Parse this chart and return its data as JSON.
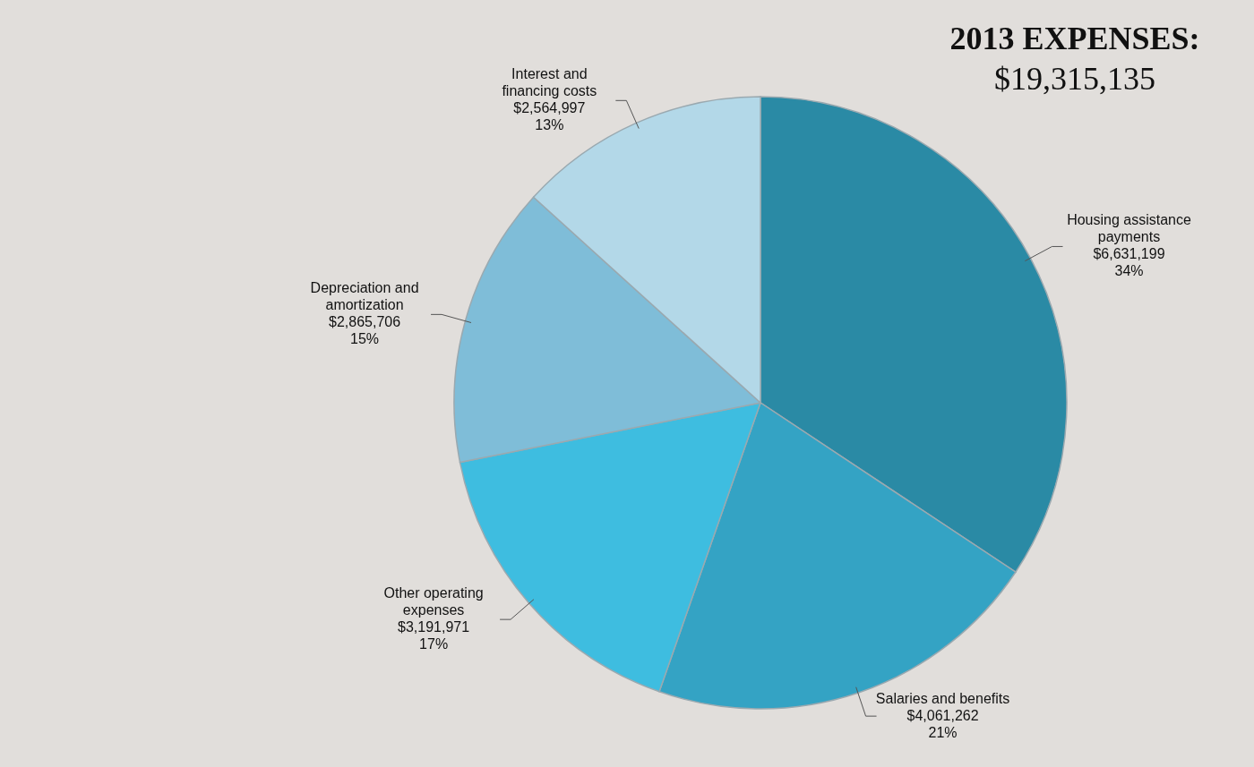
{
  "chart_data": {
    "type": "pie",
    "title": "2013 EXPENSES:",
    "subtitle": "$19,315,135",
    "categories": [
      "Housing assistance payments",
      "Salaries and benefits",
      "Other operating expenses",
      "Depreciation and amortization",
      "Interest and financing costs"
    ],
    "values": [
      6631199,
      4061262,
      3191971,
      2865706,
      2564997
    ],
    "colors": [
      "#2a8aa5",
      "#34a3c4",
      "#3ebde0",
      "#7fbdd8",
      "#b3d8e8"
    ],
    "value_labels": [
      "$6,631,199\n34%",
      "$4,061,262\n21%",
      "$3,191,971\n17%",
      "$2,865,706\n15%",
      "$2,564,997\n13%"
    ]
  }
}
